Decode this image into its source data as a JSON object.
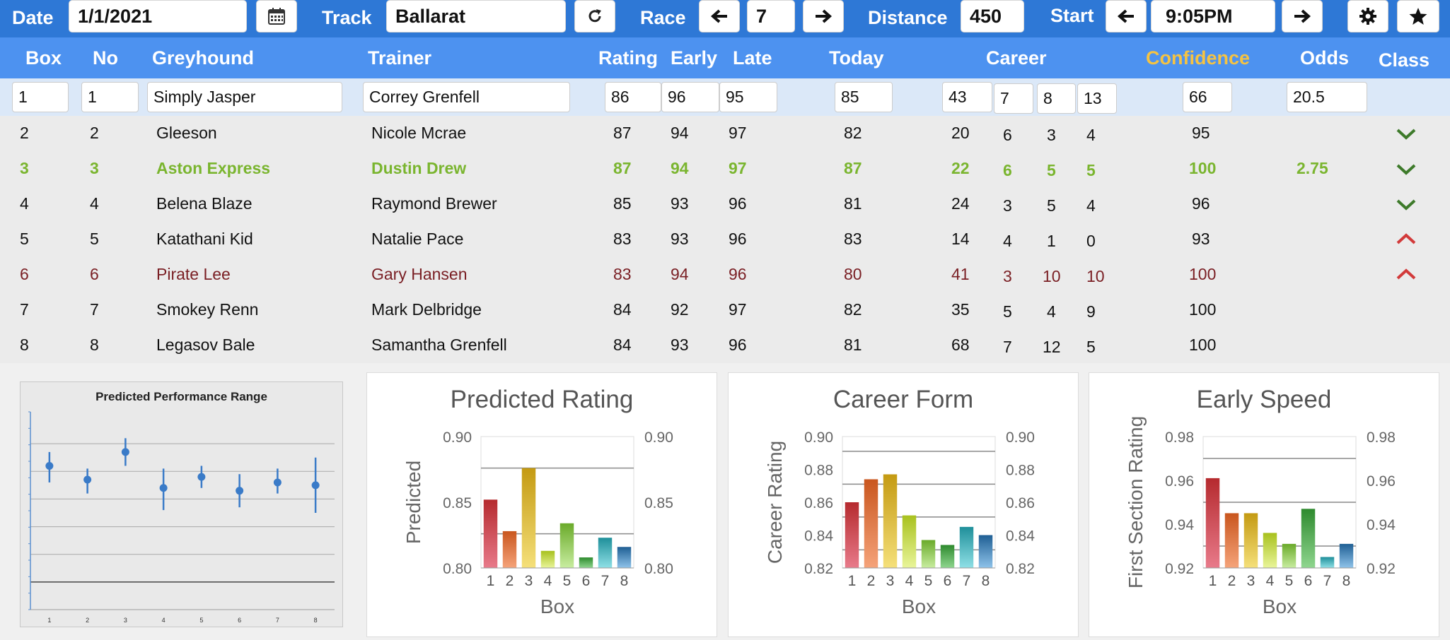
{
  "controls": {
    "date_label": "Date",
    "date_value": "1/1/2021",
    "track_label": "Track",
    "track_value": "Ballarat",
    "race_label": "Race",
    "race_value": "7",
    "distance_label": "Distance",
    "distance_value": "450",
    "start_label": "Start",
    "start_value": "9:05PM",
    "icons": [
      "calendar-icon",
      "refresh-icon",
      "arrow-left-icon",
      "arrow-right-icon",
      "gear-icon",
      "star-icon"
    ]
  },
  "table": {
    "headers": {
      "box": "Box",
      "no": "No",
      "greyhound": "Greyhound",
      "trainer": "Trainer",
      "rating": "Rating",
      "early": "Early",
      "late": "Late",
      "today": "Today",
      "career": "Career",
      "confidence": "Confidence",
      "odds": "Odds",
      "class": "Class"
    },
    "edit_row": {
      "box": "1",
      "no": "1",
      "greyhound": "Simply Jasper",
      "trainer": "Correy Grenfell",
      "rating": "86",
      "early": "96",
      "late": "95",
      "today": "85",
      "career": [
        "43",
        "7",
        "8",
        "13"
      ],
      "confidence": "66",
      "odds": "20.5"
    },
    "rows": [
      {
        "box": "2",
        "no": "2",
        "greyhound": "Gleeson",
        "trainer": "Nicole Mcrae",
        "rating": "87",
        "early": "94",
        "late": "97",
        "today": "82",
        "c1": "20",
        "c2": "6",
        "c3": "3",
        "c4": "4",
        "confidence": "95",
        "odds": "",
        "class_icon": "chevron-down-icon",
        "style": "normal"
      },
      {
        "box": "3",
        "no": "3",
        "greyhound": "Aston Express",
        "trainer": "Dustin Drew",
        "rating": "87",
        "early": "94",
        "late": "97",
        "today": "87",
        "c1": "22",
        "c2": "6",
        "c3": "5",
        "c4": "5",
        "confidence": "100",
        "odds": "2.75",
        "class_icon": "chevron-down-icon",
        "style": "green"
      },
      {
        "box": "4",
        "no": "4",
        "greyhound": "Belena Blaze",
        "trainer": "Raymond Brewer",
        "rating": "85",
        "early": "93",
        "late": "96",
        "today": "81",
        "c1": "24",
        "c2": "3",
        "c3": "5",
        "c4": "4",
        "confidence": "96",
        "odds": "",
        "class_icon": "chevron-down-icon",
        "style": "normal"
      },
      {
        "box": "5",
        "no": "5",
        "greyhound": "Katathani Kid",
        "trainer": "Natalie Pace",
        "rating": "83",
        "early": "93",
        "late": "96",
        "today": "83",
        "c1": "14",
        "c2": "4",
        "c3": "1",
        "c4": "0",
        "confidence": "93",
        "odds": "",
        "class_icon": "chevron-up-icon",
        "style": "normal"
      },
      {
        "box": "6",
        "no": "6",
        "greyhound": "Pirate Lee",
        "trainer": "Gary Hansen",
        "rating": "83",
        "early": "94",
        "late": "96",
        "today": "80",
        "c1": "41",
        "c2": "3",
        "c3": "10",
        "c4": "10",
        "confidence": "100",
        "odds": "",
        "class_icon": "chevron-up-icon",
        "style": "red"
      },
      {
        "box": "7",
        "no": "7",
        "greyhound": "Smokey Renn",
        "trainer": "Mark Delbridge",
        "rating": "84",
        "early": "92",
        "late": "97",
        "today": "82",
        "c1": "35",
        "c2": "5",
        "c3": "4",
        "c4": "9",
        "confidence": "100",
        "odds": "",
        "class_icon": "",
        "style": "normal"
      },
      {
        "box": "8",
        "no": "8",
        "greyhound": "Legasov Bale",
        "trainer": "Samantha Grenfell",
        "rating": "84",
        "early": "93",
        "late": "96",
        "today": "81",
        "c1": "68",
        "c2": "7",
        "c3": "12",
        "c4": "5",
        "confidence": "100",
        "odds": "",
        "class_icon": "",
        "style": "normal"
      }
    ]
  },
  "colors": {
    "topbar": "#2e78d6",
    "header": "#4d92f0",
    "confidence_header": "#f5c342",
    "highlight_green": "#7ab52f",
    "highlight_red": "#7a1f24",
    "chevron_down": "#3d7a2a",
    "chevron_up": "#d23a3a"
  },
  "chart_data": [
    {
      "type": "scatter",
      "title": "Predicted Performance Range",
      "categories": [
        "1",
        "2",
        "3",
        "4",
        "5",
        "6",
        "7",
        "8"
      ],
      "values": [
        0.52,
        0.47,
        0.57,
        0.44,
        0.48,
        0.43,
        0.46,
        0.45
      ],
      "low": [
        0.46,
        0.42,
        0.52,
        0.36,
        0.44,
        0.37,
        0.42,
        0.35
      ],
      "high": [
        0.57,
        0.51,
        0.62,
        0.51,
        0.52,
        0.49,
        0.51,
        0.55
      ],
      "ylim": [
        0,
        0.7
      ],
      "gridlines": [
        0.1,
        0.2,
        0.3,
        0.4,
        0.5,
        0.6
      ],
      "grid": true
    },
    {
      "type": "bar",
      "title": "Predicted Rating",
      "xlabel": "Box",
      "ylabel": "Predicted",
      "categories": [
        "1",
        "2",
        "3",
        "4",
        "5",
        "6",
        "7",
        "8"
      ],
      "values": [
        0.852,
        0.828,
        0.876,
        0.813,
        0.834,
        0.808,
        0.823,
        0.816
      ],
      "ylim": [
        0.8,
        0.9
      ],
      "yticks": [
        "0.80",
        "0.85",
        "0.90"
      ],
      "reflines": [
        0.876,
        0.826
      ]
    },
    {
      "type": "bar",
      "title": "Career Form",
      "xlabel": "Box",
      "ylabel": "Career Rating",
      "categories": [
        "1",
        "2",
        "3",
        "4",
        "5",
        "6",
        "7",
        "8"
      ],
      "values": [
        0.86,
        0.874,
        0.877,
        0.852,
        0.837,
        0.834,
        0.845,
        0.84
      ],
      "ylim": [
        0.82,
        0.9
      ],
      "yticks": [
        "0.82",
        "0.84",
        "0.86",
        "0.88",
        "0.90"
      ],
      "reflines": [
        0.891,
        0.871,
        0.851,
        0.831
      ]
    },
    {
      "type": "bar",
      "title": "Early Speed",
      "xlabel": "Box",
      "ylabel": "First Section Rating",
      "categories": [
        "1",
        "2",
        "3",
        "4",
        "5",
        "6",
        "7",
        "8"
      ],
      "values": [
        0.961,
        0.945,
        0.945,
        0.936,
        0.931,
        0.947,
        0.925,
        0.931
      ],
      "ylim": [
        0.92,
        0.98
      ],
      "yticks": [
        "0.92",
        "0.94",
        "0.96",
        "0.98"
      ],
      "reflines": [
        0.97,
        0.95,
        0.93
      ]
    }
  ]
}
